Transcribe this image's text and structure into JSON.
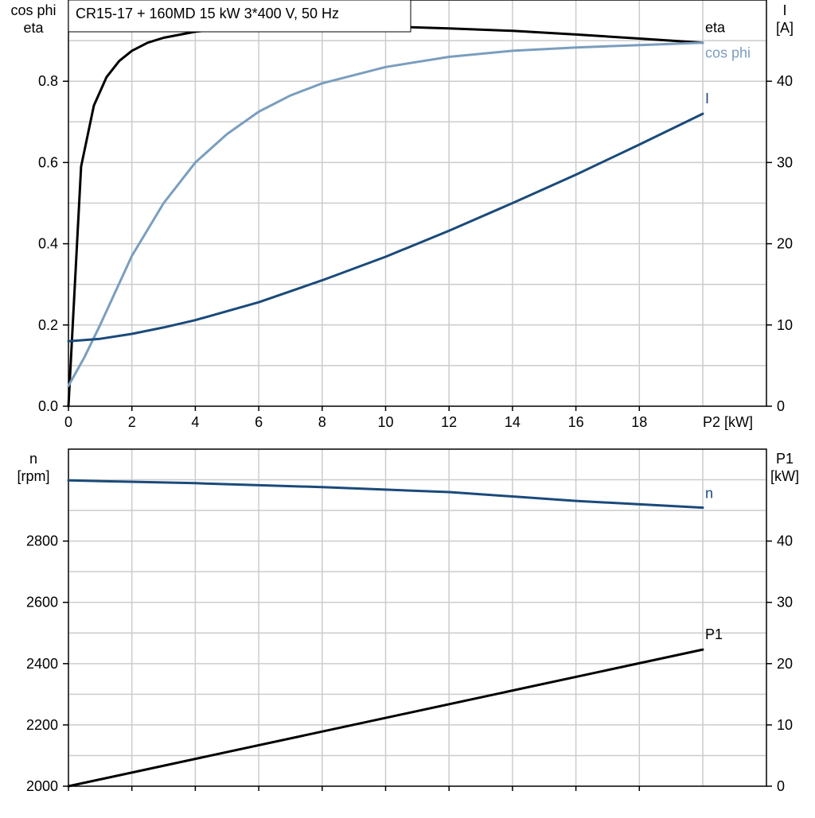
{
  "chart_data": [
    {
      "type": "line",
      "title": "CR15-17 + 160MD   15 kW   3*400 V, 50 Hz",
      "xlabel": "P2 [kW]",
      "xlim": [
        0,
        20
      ],
      "x_ticks": [
        "0",
        "2",
        "4",
        "6",
        "8",
        "10",
        "12",
        "14",
        "16",
        "18"
      ],
      "ylabel_left": [
        "cos phi",
        "eta"
      ],
      "ylim_left": [
        0,
        1.0
      ],
      "y_ticks_left": [
        "0.0",
        "0.2",
        "0.4",
        "0.6",
        "0.8"
      ],
      "ylabel_right": [
        "I",
        "[A]"
      ],
      "ylim_right": [
        0,
        50
      ],
      "y_ticks_right": [
        "0",
        "10",
        "20",
        "30",
        "40"
      ],
      "grid": true,
      "series": [
        {
          "name": "eta",
          "axis": "left",
          "color": "#000000",
          "x": [
            0,
            0.4,
            0.8,
            1.2,
            1.6,
            2.0,
            2.5,
            3,
            4,
            5,
            6,
            8,
            10,
            12,
            14,
            16,
            18,
            20
          ],
          "y": [
            0.0,
            0.59,
            0.74,
            0.81,
            0.85,
            0.875,
            0.895,
            0.907,
            0.922,
            0.93,
            0.934,
            0.937,
            0.935,
            0.93,
            0.924,
            0.915,
            0.905,
            0.895
          ]
        },
        {
          "name": "cos phi",
          "axis": "left",
          "color": "#7a9ebe",
          "x": [
            0,
            0.5,
            1,
            2,
            3,
            4,
            5,
            6,
            7,
            8,
            10,
            12,
            14,
            16,
            18,
            20
          ],
          "y": [
            0.05,
            0.12,
            0.2,
            0.37,
            0.5,
            0.6,
            0.67,
            0.725,
            0.765,
            0.795,
            0.835,
            0.86,
            0.875,
            0.883,
            0.889,
            0.895
          ]
        },
        {
          "name": "I",
          "axis": "right",
          "color": "#1a4a7a",
          "x": [
            0,
            1,
            2,
            3,
            4,
            6,
            8,
            10,
            12,
            14,
            16,
            18,
            20
          ],
          "y": [
            8.0,
            8.3,
            8.9,
            9.7,
            10.6,
            12.8,
            15.5,
            18.4,
            21.6,
            25.0,
            28.5,
            32.2,
            36.0
          ]
        }
      ]
    },
    {
      "type": "line",
      "xlim": [
        0,
        20
      ],
      "ylabel_left": [
        "n",
        "[rpm]"
      ],
      "ylim_left": [
        2000,
        3100
      ],
      "y_ticks_left": [
        "2000",
        "2200",
        "2400",
        "2600",
        "2800"
      ],
      "ylabel_right": [
        "P1",
        "[kW]"
      ],
      "ylim_right": [
        0,
        55
      ],
      "y_ticks_right": [
        "0",
        "10",
        "20",
        "30",
        "40"
      ],
      "grid": true,
      "series": [
        {
          "name": "n",
          "axis": "left",
          "color": "#1a4a7a",
          "x": [
            0,
            4,
            8,
            12,
            16,
            20
          ],
          "y": [
            2998,
            2989,
            2976,
            2960,
            2931,
            2909
          ]
        },
        {
          "name": "P1",
          "axis": "right",
          "color": "#000000",
          "x": [
            0,
            20
          ],
          "y": [
            0.0,
            22.3
          ]
        }
      ]
    }
  ]
}
